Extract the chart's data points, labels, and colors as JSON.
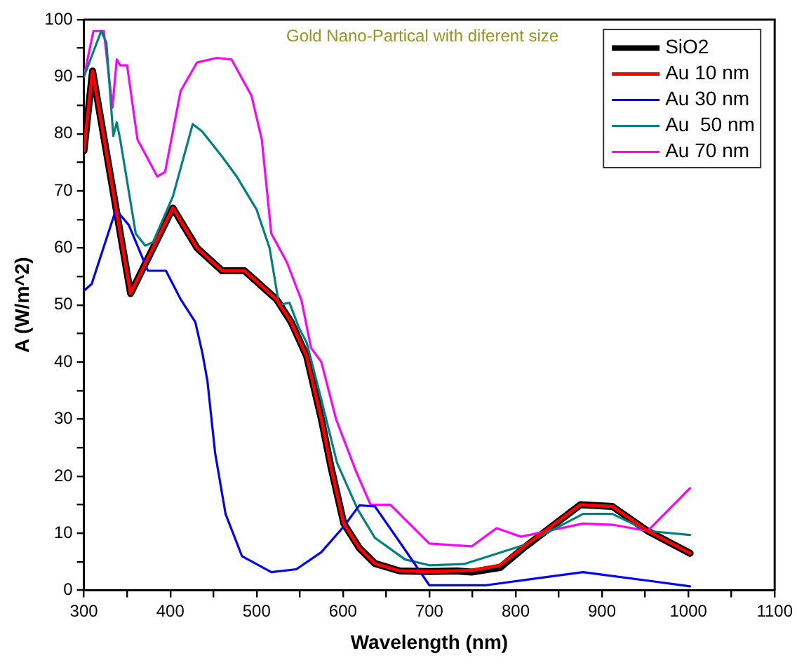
{
  "chart_data": {
    "type": "line",
    "title": "Gold Nano-Partical with diferent size",
    "xlabel": "Wavelength (nm)",
    "ylabel": "A (W/m^2)",
    "xlim": [
      300,
      1100
    ],
    "xticks": [
      300,
      400,
      500,
      600,
      700,
      800,
      900,
      1000,
      1100
    ],
    "ylim": [
      0,
      100
    ],
    "yticks": [
      0,
      10,
      20,
      30,
      40,
      50,
      60,
      70,
      80,
      90,
      100
    ],
    "grid": false,
    "legend": "top right",
    "marker": "none",
    "line_style": "solid",
    "series": [
      {
        "name": "SiO2",
        "color": "#000000",
        "x": [
          300,
          310,
          354,
          403,
          431,
          460,
          486,
          523,
          540,
          558,
          575,
          586,
          601,
          619,
          637,
          666,
          700,
          732,
          749,
          782,
          809,
          875,
          912,
          953,
          1002
        ],
        "values": [
          77,
          91,
          52,
          67,
          60,
          56,
          56,
          51,
          47,
          41,
          30,
          21.7,
          11.7,
          7.4,
          4.7,
          3.4,
          3.3,
          3.4,
          3.2,
          4,
          7.4,
          15,
          14.7,
          10.4,
          6.5
        ]
      },
      {
        "name": "Au 10 nm",
        "color": "#ff0000",
        "x": [
          300,
          310,
          354,
          403,
          431,
          460,
          486,
          523,
          540,
          558,
          575,
          586,
          601,
          619,
          637,
          666,
          700,
          732,
          749,
          782,
          809,
          875,
          912,
          953,
          1002
        ],
        "values": [
          77,
          91,
          52,
          67,
          60,
          56,
          56,
          51,
          47,
          41,
          30,
          21.7,
          11.7,
          7.4,
          4.7,
          3.4,
          3.3,
          3.4,
          3.5,
          4.4,
          7.6,
          15,
          14.7,
          10.4,
          6.5
        ]
      },
      {
        "name": "Au 30 nm",
        "color": "#0000ff",
        "x": [
          300,
          309,
          337,
          352,
          374,
          395,
          412,
          429,
          437,
          443,
          452,
          464,
          483,
          517,
          546,
          575,
          601,
          619,
          637,
          666,
          700,
          766,
          878,
          953,
          1002
        ],
        "values": [
          52.5,
          53.7,
          66.7,
          64,
          56,
          56,
          51,
          47,
          41.7,
          36.7,
          24,
          13.4,
          6,
          3.2,
          3.7,
          6.7,
          11.2,
          14.9,
          14.7,
          8.4,
          0.9,
          0.9,
          3.2,
          1.7,
          0.7
        ]
      },
      {
        "name": "Au  50 nm",
        "color": "#008080",
        "x": [
          300,
          320,
          326,
          334,
          338,
          342,
          360,
          371,
          380,
          403,
          426,
          437,
          460,
          477,
          500,
          515,
          526,
          538,
          549,
          558,
          575,
          593,
          617,
          637,
          672,
          700,
          740,
          809,
          878,
          912,
          953,
          1002
        ],
        "values": [
          90,
          98,
          96,
          79.6,
          82,
          79,
          62.5,
          60.4,
          61,
          69,
          81.7,
          80.4,
          76,
          72.5,
          66.7,
          60,
          50,
          50.4,
          46,
          43.4,
          33.4,
          22.4,
          14.2,
          9.2,
          5.4,
          4.4,
          4.6,
          7.9,
          13.4,
          13.4,
          10.4,
          9.7
        ]
      },
      {
        "name": "Au 70 nm",
        "color": "#ff00ff",
        "x": [
          300,
          311,
          323,
          333,
          338,
          342,
          350,
          362,
          385,
          394,
          412,
          431,
          454,
          471,
          494,
          506,
          517,
          535,
          552,
          563,
          575,
          592,
          615,
          632,
          655,
          700,
          749,
          778,
          806,
          878,
          912,
          953,
          1002
        ],
        "values": [
          90,
          98,
          98,
          84.6,
          93,
          92,
          92,
          79,
          72.5,
          73.3,
          87.5,
          92.5,
          93.3,
          93,
          86.7,
          79,
          62.5,
          57.5,
          50.8,
          42.5,
          40,
          30,
          20.9,
          15,
          15,
          8.2,
          7.7,
          10.9,
          9.4,
          11.7,
          11.5,
          10.4,
          17.9
        ]
      }
    ]
  }
}
